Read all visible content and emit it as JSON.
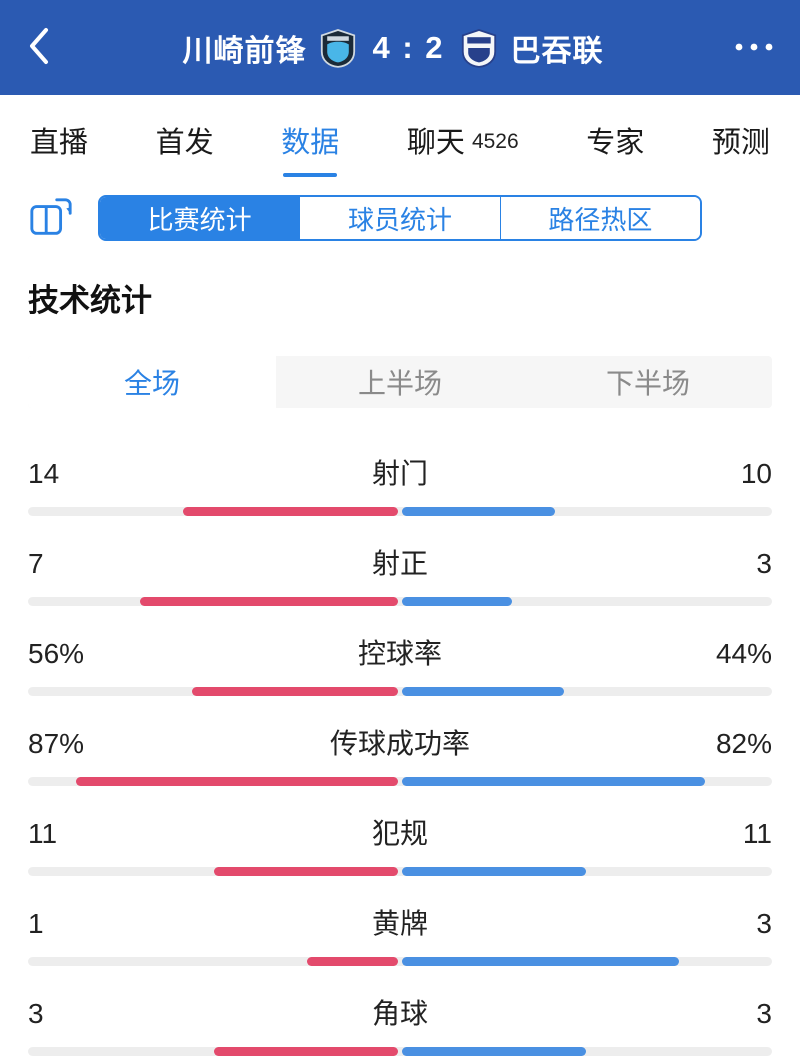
{
  "colors": {
    "accent": "#2a82e4",
    "home_bar": "#e34a6c",
    "away_bar": "#4a90e2",
    "bar_track": "#ededed",
    "header_bg": "#2b5ab2"
  },
  "header": {
    "back_icon": "chevron-left",
    "more_icon": "ellipsis",
    "home_team": "川崎前锋",
    "away_team": "巴吞联",
    "score": "4 : 2"
  },
  "tabs": {
    "items": [
      {
        "name": "live",
        "label": "直播",
        "active": false
      },
      {
        "name": "lineups",
        "label": "首发",
        "active": false
      },
      {
        "name": "data",
        "label": "数据",
        "active": true
      },
      {
        "name": "chat",
        "label": "聊天",
        "badge": "4526",
        "active": false
      },
      {
        "name": "experts",
        "label": "专家",
        "active": false
      },
      {
        "name": "predictions",
        "label": "预测",
        "active": false
      }
    ]
  },
  "stat_type_tabs": {
    "items": [
      {
        "name": "match-stats",
        "label": "比赛统计",
        "active": true
      },
      {
        "name": "player-stats",
        "label": "球员统计",
        "active": false
      },
      {
        "name": "heatmap",
        "label": "路径热区",
        "active": false
      }
    ]
  },
  "section_title": "技术统计",
  "period_tabs": {
    "items": [
      {
        "name": "full-match",
        "label": "全场",
        "active": true
      },
      {
        "name": "first-half",
        "label": "上半场",
        "active": false
      },
      {
        "name": "second-half",
        "label": "下半场",
        "active": false
      }
    ]
  },
  "chart_data": {
    "type": "bar",
    "title": "技术统计",
    "legend": [
      "川崎前锋",
      "巴吞联"
    ],
    "home_color": "#e34a6c",
    "away_color": "#4a90e2",
    "rows": [
      {
        "label": "射门",
        "home": "14",
        "away": "10"
      },
      {
        "label": "射正",
        "home": "7",
        "away": "3"
      },
      {
        "label": "控球率",
        "home": "56%",
        "away": "44%"
      },
      {
        "label": "传球成功率",
        "home": "87%",
        "away": "82%"
      },
      {
        "label": "犯规",
        "home": "11",
        "away": "11"
      },
      {
        "label": "黄牌",
        "home": "1",
        "away": "3"
      },
      {
        "label": "角球",
        "home": "3",
        "away": "3"
      }
    ]
  }
}
